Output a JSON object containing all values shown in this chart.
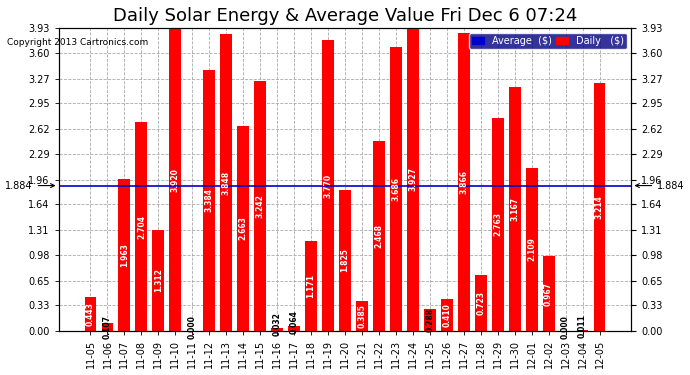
{
  "title": "Daily Solar Energy & Average Value Fri Dec 6 07:24",
  "copyright": "Copyright 2013 Cartronics.com",
  "categories": [
    "11-05",
    "11-06",
    "11-07",
    "11-08",
    "11-09",
    "11-10",
    "11-11",
    "11-12",
    "11-13",
    "11-14",
    "11-15",
    "11-16",
    "11-17",
    "11-18",
    "11-19",
    "11-20",
    "11-21",
    "11-22",
    "11-23",
    "11-24",
    "11-25",
    "11-26",
    "11-27",
    "11-28",
    "11-29",
    "11-30",
    "12-01",
    "12-02",
    "12-03",
    "12-04",
    "12-05"
  ],
  "values": [
    0.443,
    0.107,
    1.963,
    2.704,
    1.312,
    3.92,
    0.0,
    3.384,
    3.848,
    2.663,
    3.242,
    0.032,
    0.064,
    1.171,
    3.77,
    1.825,
    0.385,
    2.468,
    3.686,
    3.927,
    0.288,
    0.41,
    3.866,
    0.723,
    2.763,
    3.167,
    2.109,
    0.967,
    0.0,
    0.011,
    3.214
  ],
  "average": 1.884,
  "bar_color": "#ff0000",
  "average_line_color": "#0000cc",
  "background_color": "#ffffff",
  "plot_bg_color": "#ffffff",
  "grid_color": "#aaaaaa",
  "ylim": [
    0,
    3.93
  ],
  "yticks": [
    0.0,
    0.33,
    0.65,
    0.98,
    1.31,
    1.64,
    1.96,
    2.29,
    2.62,
    2.95,
    3.27,
    3.6,
    3.93
  ],
  "title_fontsize": 13,
  "tick_fontsize": 7,
  "label_fontsize": 7,
  "avg_label": "1.884",
  "legend_avg_color": "#0000cc",
  "legend_daily_color": "#ff0000",
  "legend_avg_text": "Average  ($)",
  "legend_daily_text": "Daily   ($)"
}
